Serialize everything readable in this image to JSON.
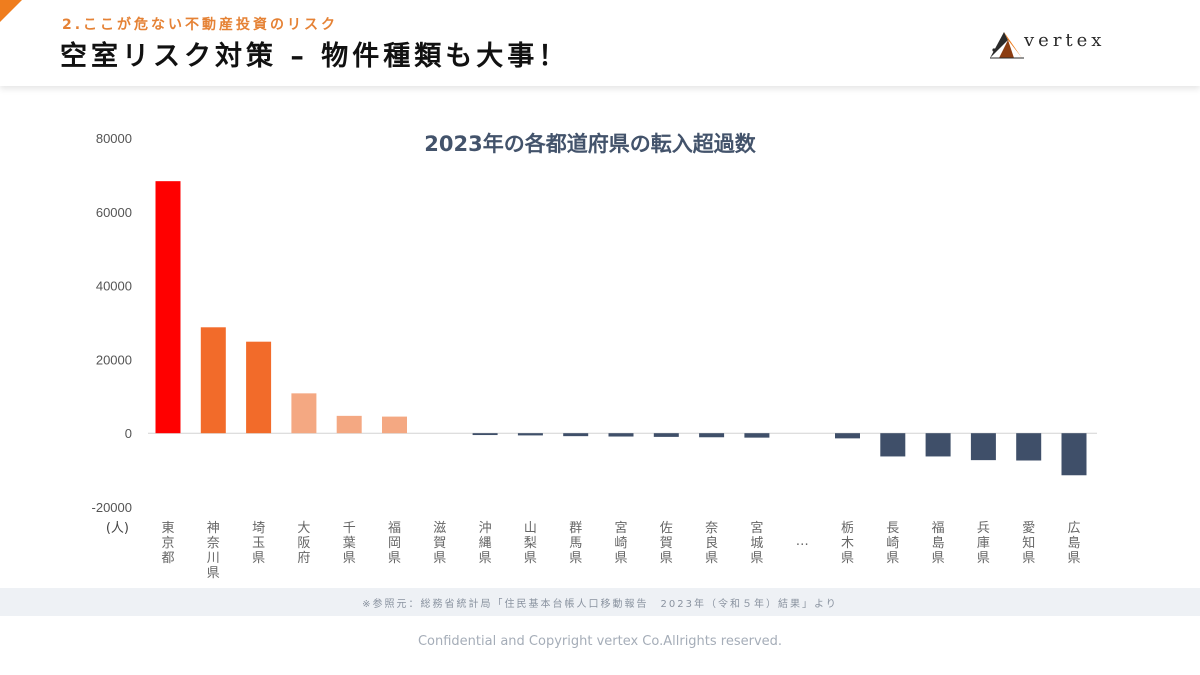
{
  "header": {
    "subtitle": "2.ここが危ない不動産投資のリスク",
    "title": "空室リスク対策 – 物件種類も大事！",
    "logo_text": "vertex",
    "accent_color": "#ef7d1e"
  },
  "chart_data": {
    "type": "bar",
    "title": "2023年の各都道府県の転入超過数",
    "ylabel": "(人)",
    "xlabel": "",
    "ylim": [
      -20000,
      80000
    ],
    "yticks": [
      80000,
      60000,
      40000,
      20000,
      0,
      -20000
    ],
    "grid": false,
    "categories": [
      "東京都",
      "神奈川県",
      "埼玉県",
      "大阪府",
      "千葉県",
      "福岡県",
      "滋賀県",
      "沖縄県",
      "山梨県",
      "群馬県",
      "宮崎県",
      "佐賀県",
      "奈良県",
      "宮城県",
      "…",
      "栃木県",
      "長崎県",
      "福島県",
      "兵庫県",
      "愛知県",
      "広島県"
    ],
    "values": [
      68300,
      28700,
      24800,
      10800,
      4700,
      4500,
      0,
      -500,
      -600,
      -800,
      -900,
      -1000,
      -1100,
      -1200,
      null,
      -1400,
      -6300,
      -6300,
      -7300,
      -7400,
      -11400
    ],
    "colors": [
      "#ff0000",
      "#f26b2a",
      "#f26b2a",
      "#f4a882",
      "#f4a882",
      "#f4a882",
      "#3f4f69",
      "#3f4f69",
      "#3f4f69",
      "#3f4f69",
      "#3f4f69",
      "#3f4f69",
      "#3f4f69",
      "#3f4f69",
      "#3f4f69",
      "#3f4f69",
      "#3f4f69",
      "#3f4f69",
      "#3f4f69",
      "#3f4f69",
      "#3f4f69"
    ]
  },
  "source": "※参照元：総務省統計局「住民基本台帳人口移動報告　2023年（令和５年）結果」より",
  "footer": "Confidential and Copyright vertex Co.Allrights reserved."
}
